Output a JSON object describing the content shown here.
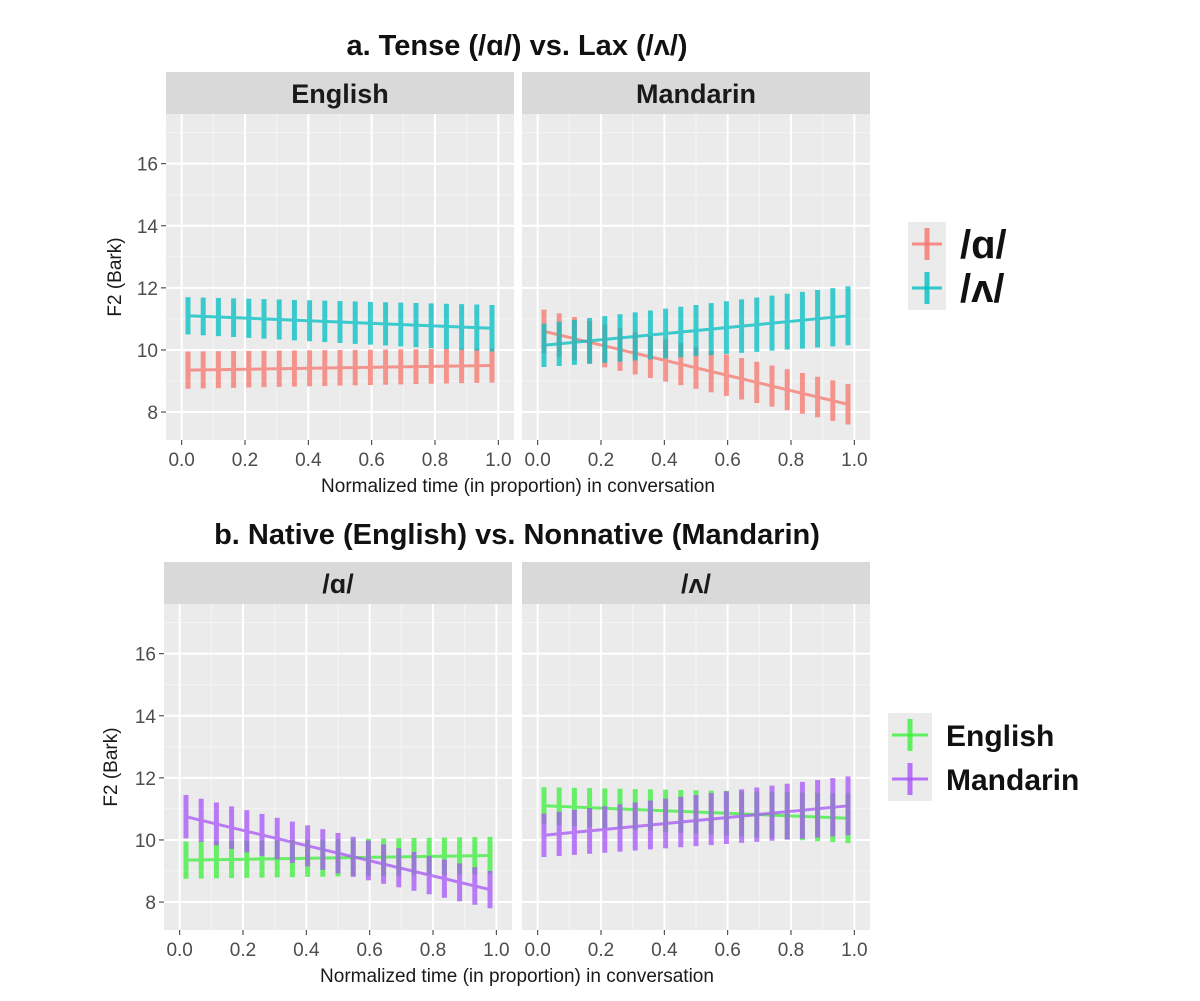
{
  "chart_data": [
    {
      "type": "line",
      "title": "a. Tense (/ɑ/) vs. Lax (/ʌ/)",
      "xlabel": "Normalized time (in proportion) in conversation",
      "ylabel": "F2 (Bark)",
      "xlim": [
        0,
        1
      ],
      "ylim": [
        7.1,
        17.6
      ],
      "xticks": [
        "0.0",
        "0.2",
        "0.4",
        "0.6",
        "0.8",
        "1.0"
      ],
      "yticks": [
        "8",
        "10",
        "12",
        "14",
        "16"
      ],
      "grid": true,
      "legend": {
        "placement": "right",
        "entries": [
          {
            "label": "/ɑ/",
            "color": "#F8766D"
          },
          {
            "label": "/ʌ/",
            "color": "#00BFC4"
          }
        ]
      },
      "panels": [
        {
          "strip": "English",
          "series": [
            {
              "name": "/ɑ/",
              "color": "#F8766D",
              "start": 9.35,
              "end": 9.5,
              "halfwidth_start": 0.6,
              "halfwidth_end": 0.55
            },
            {
              "name": "/ʌ/",
              "color": "#00BFC4",
              "start": 11.1,
              "end": 10.7,
              "halfwidth_start": 0.6,
              "halfwidth_end": 0.75
            }
          ]
        },
        {
          "strip": "Mandarin",
          "series": [
            {
              "name": "/ɑ/",
              "color": "#F8766D",
              "start": 10.6,
              "end": 8.25,
              "halfwidth_start": 0.7,
              "halfwidth_end": 0.65
            },
            {
              "name": "/ʌ/",
              "color": "#00BFC4",
              "start": 10.15,
              "end": 11.1,
              "halfwidth_start": 0.7,
              "halfwidth_end": 0.95
            }
          ]
        }
      ]
    },
    {
      "type": "line",
      "title": "b. Native (English) vs. Nonnative (Mandarin)",
      "xlabel": "Normalized time (in proportion) in conversation",
      "ylabel": "F2 (Bark)",
      "xlim": [
        0,
        1
      ],
      "ylim": [
        7.1,
        17.6
      ],
      "xticks": [
        "0.0",
        "0.2",
        "0.4",
        "0.6",
        "0.8",
        "1.0"
      ],
      "yticks": [
        "8",
        "10",
        "12",
        "14",
        "16"
      ],
      "grid": true,
      "legend": {
        "placement": "right",
        "entries": [
          {
            "label": "English",
            "color": "#3BF03B"
          },
          {
            "label": "Mandarin",
            "color": "#A855F7"
          }
        ]
      },
      "panels": [
        {
          "strip": "/ɑ/",
          "series": [
            {
              "name": "English",
              "color": "#3BF03B",
              "start": 9.35,
              "end": 9.5,
              "halfwidth_start": 0.6,
              "halfwidth_end": 0.6
            },
            {
              "name": "Mandarin",
              "color": "#A855F7",
              "start": 10.75,
              "end": 8.4,
              "halfwidth_start": 0.7,
              "halfwidth_end": 0.6
            }
          ]
        },
        {
          "strip": "/ʌ/",
          "series": [
            {
              "name": "English",
              "color": "#3BF03B",
              "start": 11.1,
              "end": 10.7,
              "halfwidth_start": 0.6,
              "halfwidth_end": 0.8
            },
            {
              "name": "Mandarin",
              "color": "#A855F7",
              "start": 10.15,
              "end": 11.1,
              "halfwidth_start": 0.7,
              "halfwidth_end": 0.95
            }
          ]
        }
      ]
    }
  ]
}
